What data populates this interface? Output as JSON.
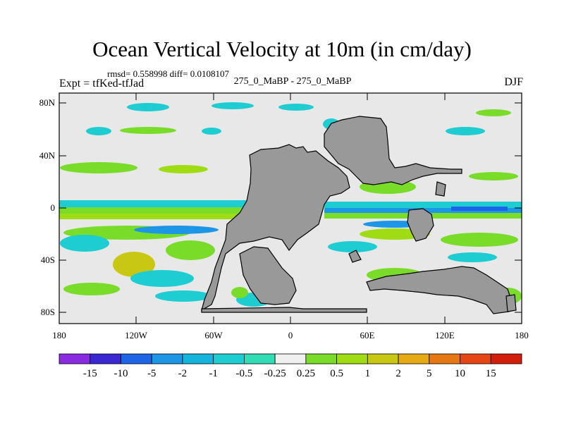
{
  "title": "Ocean Vertical Velocity at 10m (in cm/day)",
  "stats_line": "rmsd= 0.558998 diff= 0.0108107",
  "experiment_line": "Expt = tfKed-tfJad",
  "center_label": "275_0_MaBP - 275_0_MaBP",
  "season": "DJF",
  "lat_ticks": [
    "80N",
    "40N",
    "0",
    "40S",
    "80S"
  ],
  "lon_ticks": [
    "180",
    "120W",
    "60W",
    "0",
    "60E",
    "120E",
    "180"
  ],
  "colorbar": {
    "labels": [
      "-15",
      "-10",
      "-5",
      "-2",
      "-1",
      "-0.5",
      "-0.25",
      "0.25",
      "0.5",
      "1",
      "2",
      "5",
      "10",
      "15"
    ],
    "colors": [
      "#8a2be2",
      "#3c28d2",
      "#1e64e6",
      "#1e96e6",
      "#14b4dc",
      "#1ecdd2",
      "#32dcb4",
      "#f0f0f0",
      "#78dc28",
      "#a0dc14",
      "#c8c814",
      "#e6aa14",
      "#e67814",
      "#e64614",
      "#d21e0a"
    ]
  },
  "map_colors": {
    "land": "#999999",
    "ocean_background": "#e8e8e8",
    "coast": "#000000"
  }
}
